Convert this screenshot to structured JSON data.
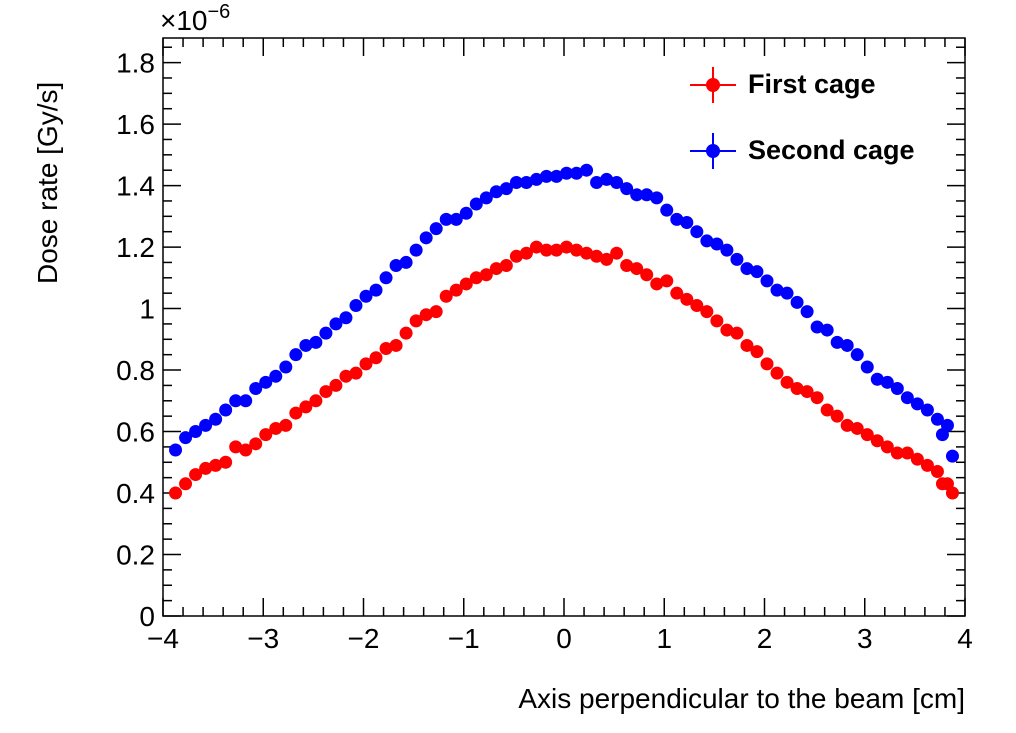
{
  "chart_data": {
    "type": "scatter",
    "xlabel": "Axis perpendicular to the beam [cm]",
    "ylabel": "Dose rate [Gy/s]",
    "y_exponent_label": "×10",
    "y_exponent_power": "−6",
    "xlim": [
      -4,
      4
    ],
    "ylim": [
      0,
      1.88
    ],
    "x_ticks": [
      -4,
      -3,
      -2,
      -1,
      0,
      1,
      2,
      3,
      4
    ],
    "x_tick_labels": [
      "−4",
      "−3",
      "−2",
      "−1",
      "0",
      "1",
      "2",
      "3",
      "4"
    ],
    "y_ticks": [
      0,
      0.2,
      0.4,
      0.6,
      0.8,
      1.0,
      1.2,
      1.4,
      1.6,
      1.8
    ],
    "y_tick_labels": [
      "0",
      "0.2",
      "0.4",
      "0.6",
      "0.8",
      "1",
      "1.2",
      "1.4",
      "1.6",
      "1.8"
    ],
    "grid": false,
    "legend_position": "top-right",
    "x": [
      -3.875,
      -3.775,
      -3.675,
      -3.575,
      -3.475,
      -3.375,
      -3.275,
      -3.175,
      -3.075,
      -2.975,
      -2.875,
      -2.775,
      -2.675,
      -2.575,
      -2.475,
      -2.375,
      -2.275,
      -2.175,
      -2.075,
      -1.975,
      -1.875,
      -1.775,
      -1.675,
      -1.575,
      -1.475,
      -1.375,
      -1.275,
      -1.175,
      -1.075,
      -0.975,
      -0.875,
      -0.775,
      -0.675,
      -0.575,
      -0.475,
      -0.375,
      -0.275,
      -0.175,
      -0.075,
      0.025,
      0.125,
      0.225,
      0.325,
      0.425,
      0.525,
      0.625,
      0.725,
      0.825,
      0.925,
      1.025,
      1.125,
      1.225,
      1.325,
      1.425,
      1.525,
      1.625,
      1.725,
      1.825,
      1.925,
      2.025,
      2.125,
      2.225,
      2.325,
      2.425,
      2.525,
      2.625,
      2.725,
      2.825,
      2.925,
      3.025,
      3.125,
      3.225,
      3.325,
      3.425,
      3.525,
      3.625,
      3.725,
      3.825
    ],
    "series": [
      {
        "name": "First cage",
        "color": "#ff0000",
        "values": [
          0.4,
          0.43,
          0.46,
          0.48,
          0.49,
          0.5,
          0.55,
          0.54,
          0.56,
          0.59,
          0.61,
          0.62,
          0.66,
          0.68,
          0.7,
          0.73,
          0.75,
          0.78,
          0.79,
          0.82,
          0.84,
          0.87,
          0.88,
          0.92,
          0.96,
          0.98,
          0.99,
          1.04,
          1.06,
          1.08,
          1.1,
          1.11,
          1.13,
          1.14,
          1.17,
          1.18,
          1.2,
          1.19,
          1.19,
          1.2,
          1.19,
          1.18,
          1.17,
          1.16,
          1.18,
          1.14,
          1.13,
          1.11,
          1.08,
          1.09,
          1.05,
          1.03,
          1.01,
          0.99,
          0.96,
          0.93,
          0.92,
          0.88,
          0.86,
          0.82,
          0.79,
          0.76,
          0.74,
          0.73,
          0.71,
          0.67,
          0.65,
          0.62,
          0.61,
          0.59,
          0.57,
          0.55,
          0.53,
          0.53,
          0.51,
          0.49,
          0.47,
          0.43
        ]
      },
      {
        "name": "Second cage",
        "color": "#0000ff",
        "values": [
          0.54,
          0.58,
          0.6,
          0.62,
          0.64,
          0.67,
          0.7,
          0.7,
          0.74,
          0.76,
          0.78,
          0.81,
          0.85,
          0.88,
          0.89,
          0.92,
          0.95,
          0.97,
          1.01,
          1.04,
          1.06,
          1.1,
          1.14,
          1.15,
          1.19,
          1.23,
          1.26,
          1.29,
          1.29,
          1.31,
          1.34,
          1.36,
          1.38,
          1.39,
          1.41,
          1.41,
          1.42,
          1.43,
          1.43,
          1.44,
          1.44,
          1.45,
          1.41,
          1.42,
          1.41,
          1.39,
          1.37,
          1.37,
          1.36,
          1.32,
          1.29,
          1.28,
          1.25,
          1.22,
          1.21,
          1.19,
          1.16,
          1.13,
          1.12,
          1.09,
          1.06,
          1.05,
          1.02,
          0.99,
          0.94,
          0.93,
          0.89,
          0.88,
          0.85,
          0.81,
          0.77,
          0.76,
          0.74,
          0.71,
          0.69,
          0.67,
          0.64,
          0.62
        ]
      }
    ],
    "extra_points": [
      {
        "series": 0,
        "x": 3.875,
        "y": 0.4
      },
      {
        "series": 1,
        "x": 3.875,
        "y": 0.52
      },
      {
        "series": 0,
        "x": 3.775,
        "y": 0.43
      },
      {
        "series": 1,
        "x": 3.775,
        "y": 0.59
      }
    ]
  }
}
